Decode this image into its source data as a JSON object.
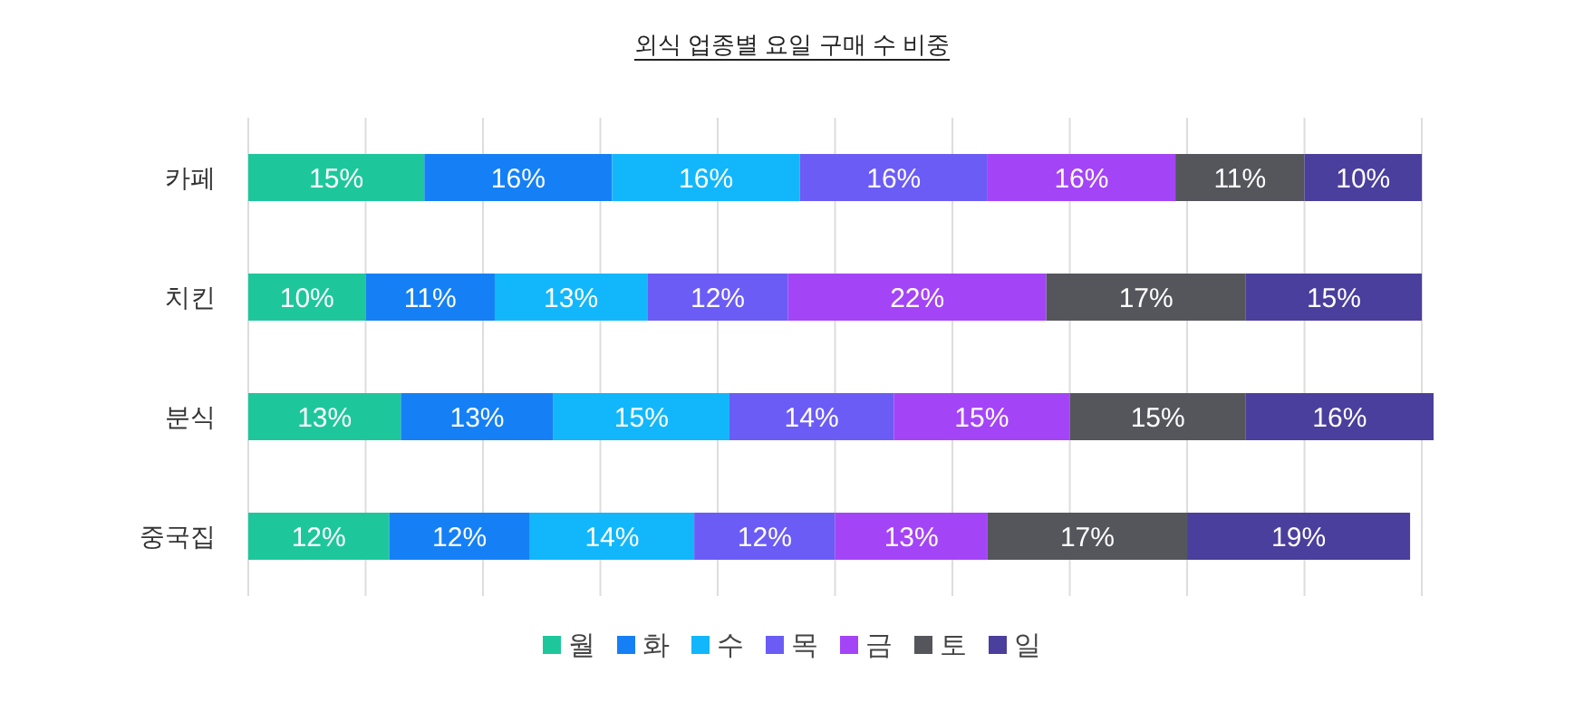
{
  "chart_data": {
    "type": "bar",
    "orientation": "horizontal",
    "stacked": true,
    "title": "외식 업종별 요일 구매 수 비중",
    "categories": [
      "카페",
      "치킨",
      "분식",
      "중국집"
    ],
    "series": [
      {
        "name": "월",
        "color": "#1ec79b",
        "values": [
          15,
          10,
          13,
          12
        ],
        "value_labels": [
          "15%",
          "10%",
          "13%",
          "12%"
        ]
      },
      {
        "name": "화",
        "color": "#1580f5",
        "values": [
          16,
          11,
          13,
          12
        ],
        "value_labels": [
          "16%",
          "11%",
          "13%",
          "12%"
        ]
      },
      {
        "name": "수",
        "color": "#12b7fb",
        "values": [
          16,
          13,
          15,
          14
        ],
        "value_labels": [
          "16%",
          "13%",
          "15%",
          "14%"
        ]
      },
      {
        "name": "목",
        "color": "#6b5cf6",
        "values": [
          16,
          12,
          14,
          12
        ],
        "value_labels": [
          "16%",
          "12%",
          "14%",
          "12%"
        ]
      },
      {
        "name": "금",
        "color": "#a444f7",
        "values": [
          16,
          22,
          15,
          13
        ],
        "value_labels": [
          "16%",
          "22%",
          "15%",
          "13%"
        ]
      },
      {
        "name": "토",
        "color": "#55565c",
        "values": [
          11,
          17,
          15,
          17
        ],
        "value_labels": [
          "11%",
          "17%",
          "15%",
          "17%"
        ]
      },
      {
        "name": "일",
        "color": "#4a3f9c",
        "values": [
          10,
          15,
          16,
          19
        ],
        "value_labels": [
          "10%",
          "15%",
          "16%",
          "19%"
        ]
      }
    ],
    "xlim": [
      0,
      101
    ],
    "xticks": [
      {
        "value": 0,
        "label": null
      },
      {
        "value": 10,
        "label": null
      },
      {
        "value": 20,
        "label": null
      },
      {
        "value": 30,
        "label": null
      },
      {
        "value": 40,
        "label": null
      },
      {
        "value": 50,
        "label": null
      },
      {
        "value": 60,
        "label": null
      },
      {
        "value": 70,
        "label": null
      },
      {
        "value": 80,
        "label": null
      },
      {
        "value": 90,
        "label": null
      },
      {
        "value": 100,
        "label": null
      }
    ],
    "tick_labels": "y",
    "grid": "x",
    "legend": "bottom"
  }
}
